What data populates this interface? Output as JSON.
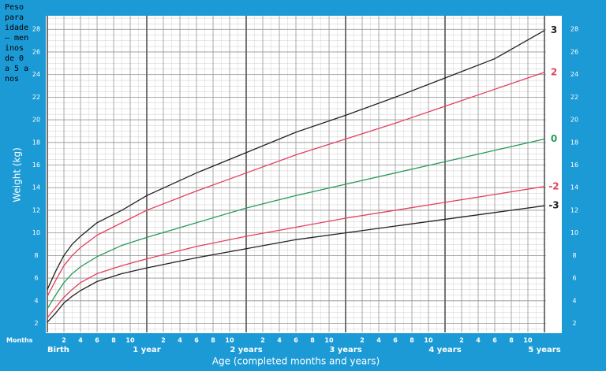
{
  "chart_data": {
    "type": "line",
    "title": "Peso para idade – meninos de 0 a 5 anos",
    "x_label": "Age (completed months and years)",
    "y_label": "Weight (kg)",
    "x_unit_label": "Months",
    "x": [
      0,
      1,
      2,
      3,
      4,
      6,
      9,
      12,
      18,
      24,
      30,
      36,
      42,
      48,
      54,
      60
    ],
    "series": [
      {
        "name": "3",
        "color": "#222222",
        "values": [
          5.0,
          6.6,
          8.0,
          9.0,
          9.7,
          10.9,
          12.0,
          13.3,
          15.3,
          17.1,
          18.9,
          20.4,
          22.0,
          23.7,
          25.4,
          27.9
        ]
      },
      {
        "name": "2",
        "color": "#e2405c",
        "values": [
          4.4,
          5.8,
          7.1,
          8.0,
          8.7,
          9.8,
          10.9,
          12.0,
          13.7,
          15.3,
          16.9,
          18.3,
          19.7,
          21.2,
          22.7,
          24.2
        ]
      },
      {
        "name": "0",
        "color": "#2a9a5a",
        "values": [
          3.3,
          4.5,
          5.6,
          6.4,
          7.0,
          7.9,
          8.9,
          9.6,
          10.9,
          12.2,
          13.3,
          14.3,
          15.3,
          16.3,
          17.3,
          18.3
        ]
      },
      {
        "name": "-2",
        "color": "#e2405c",
        "values": [
          2.5,
          3.4,
          4.3,
          5.0,
          5.6,
          6.4,
          7.1,
          7.7,
          8.8,
          9.7,
          10.5,
          11.3,
          12.0,
          12.7,
          13.4,
          14.1
        ]
      },
      {
        "name": "-3",
        "color": "#222222",
        "values": [
          2.1,
          2.9,
          3.8,
          4.4,
          4.9,
          5.7,
          6.4,
          6.9,
          7.8,
          8.6,
          9.4,
          10.0,
          10.6,
          11.2,
          11.8,
          12.4
        ]
      }
    ],
    "xlim": [
      0,
      60
    ],
    "ylim": [
      1.2,
      29.2
    ],
    "xticks": [
      {
        "value": 0,
        "label": "Birth"
      },
      2,
      4,
      6,
      8,
      10,
      {
        "value": 12,
        "label": "1 year"
      },
      {
        "value": 14,
        "label": "2"
      },
      {
        "value": 16,
        "label": "4"
      },
      {
        "value": 18,
        "label": "6"
      },
      {
        "value": 20,
        "label": "8"
      },
      {
        "value": 22,
        "label": "10"
      },
      {
        "value": 24,
        "label": "2 years"
      },
      {
        "value": 26,
        "label": "2"
      },
      {
        "value": 28,
        "label": "4"
      },
      {
        "value": 30,
        "label": "6"
      },
      {
        "value": 32,
        "label": "8"
      },
      {
        "value": 34,
        "label": "10"
      },
      {
        "value": 36,
        "label": "3 years"
      },
      {
        "value": 38,
        "label": "2"
      },
      {
        "value": 40,
        "label": "4"
      },
      {
        "value": 42,
        "label": "6"
      },
      {
        "value": 44,
        "label": "8"
      },
      {
        "value": 46,
        "label": "10"
      },
      {
        "value": 48,
        "label": "4 years"
      },
      {
        "value": 50,
        "label": "2"
      },
      {
        "value": 52,
        "label": "4"
      },
      {
        "value": 54,
        "label": "6"
      },
      {
        "value": 56,
        "label": "8"
      },
      {
        "value": 58,
        "label": "10"
      },
      {
        "value": 60,
        "label": "5 years"
      }
    ],
    "yticks": [
      2,
      4,
      6,
      8,
      10,
      12,
      14,
      16,
      18,
      20,
      22,
      24,
      26,
      28
    ],
    "grid": true
  }
}
